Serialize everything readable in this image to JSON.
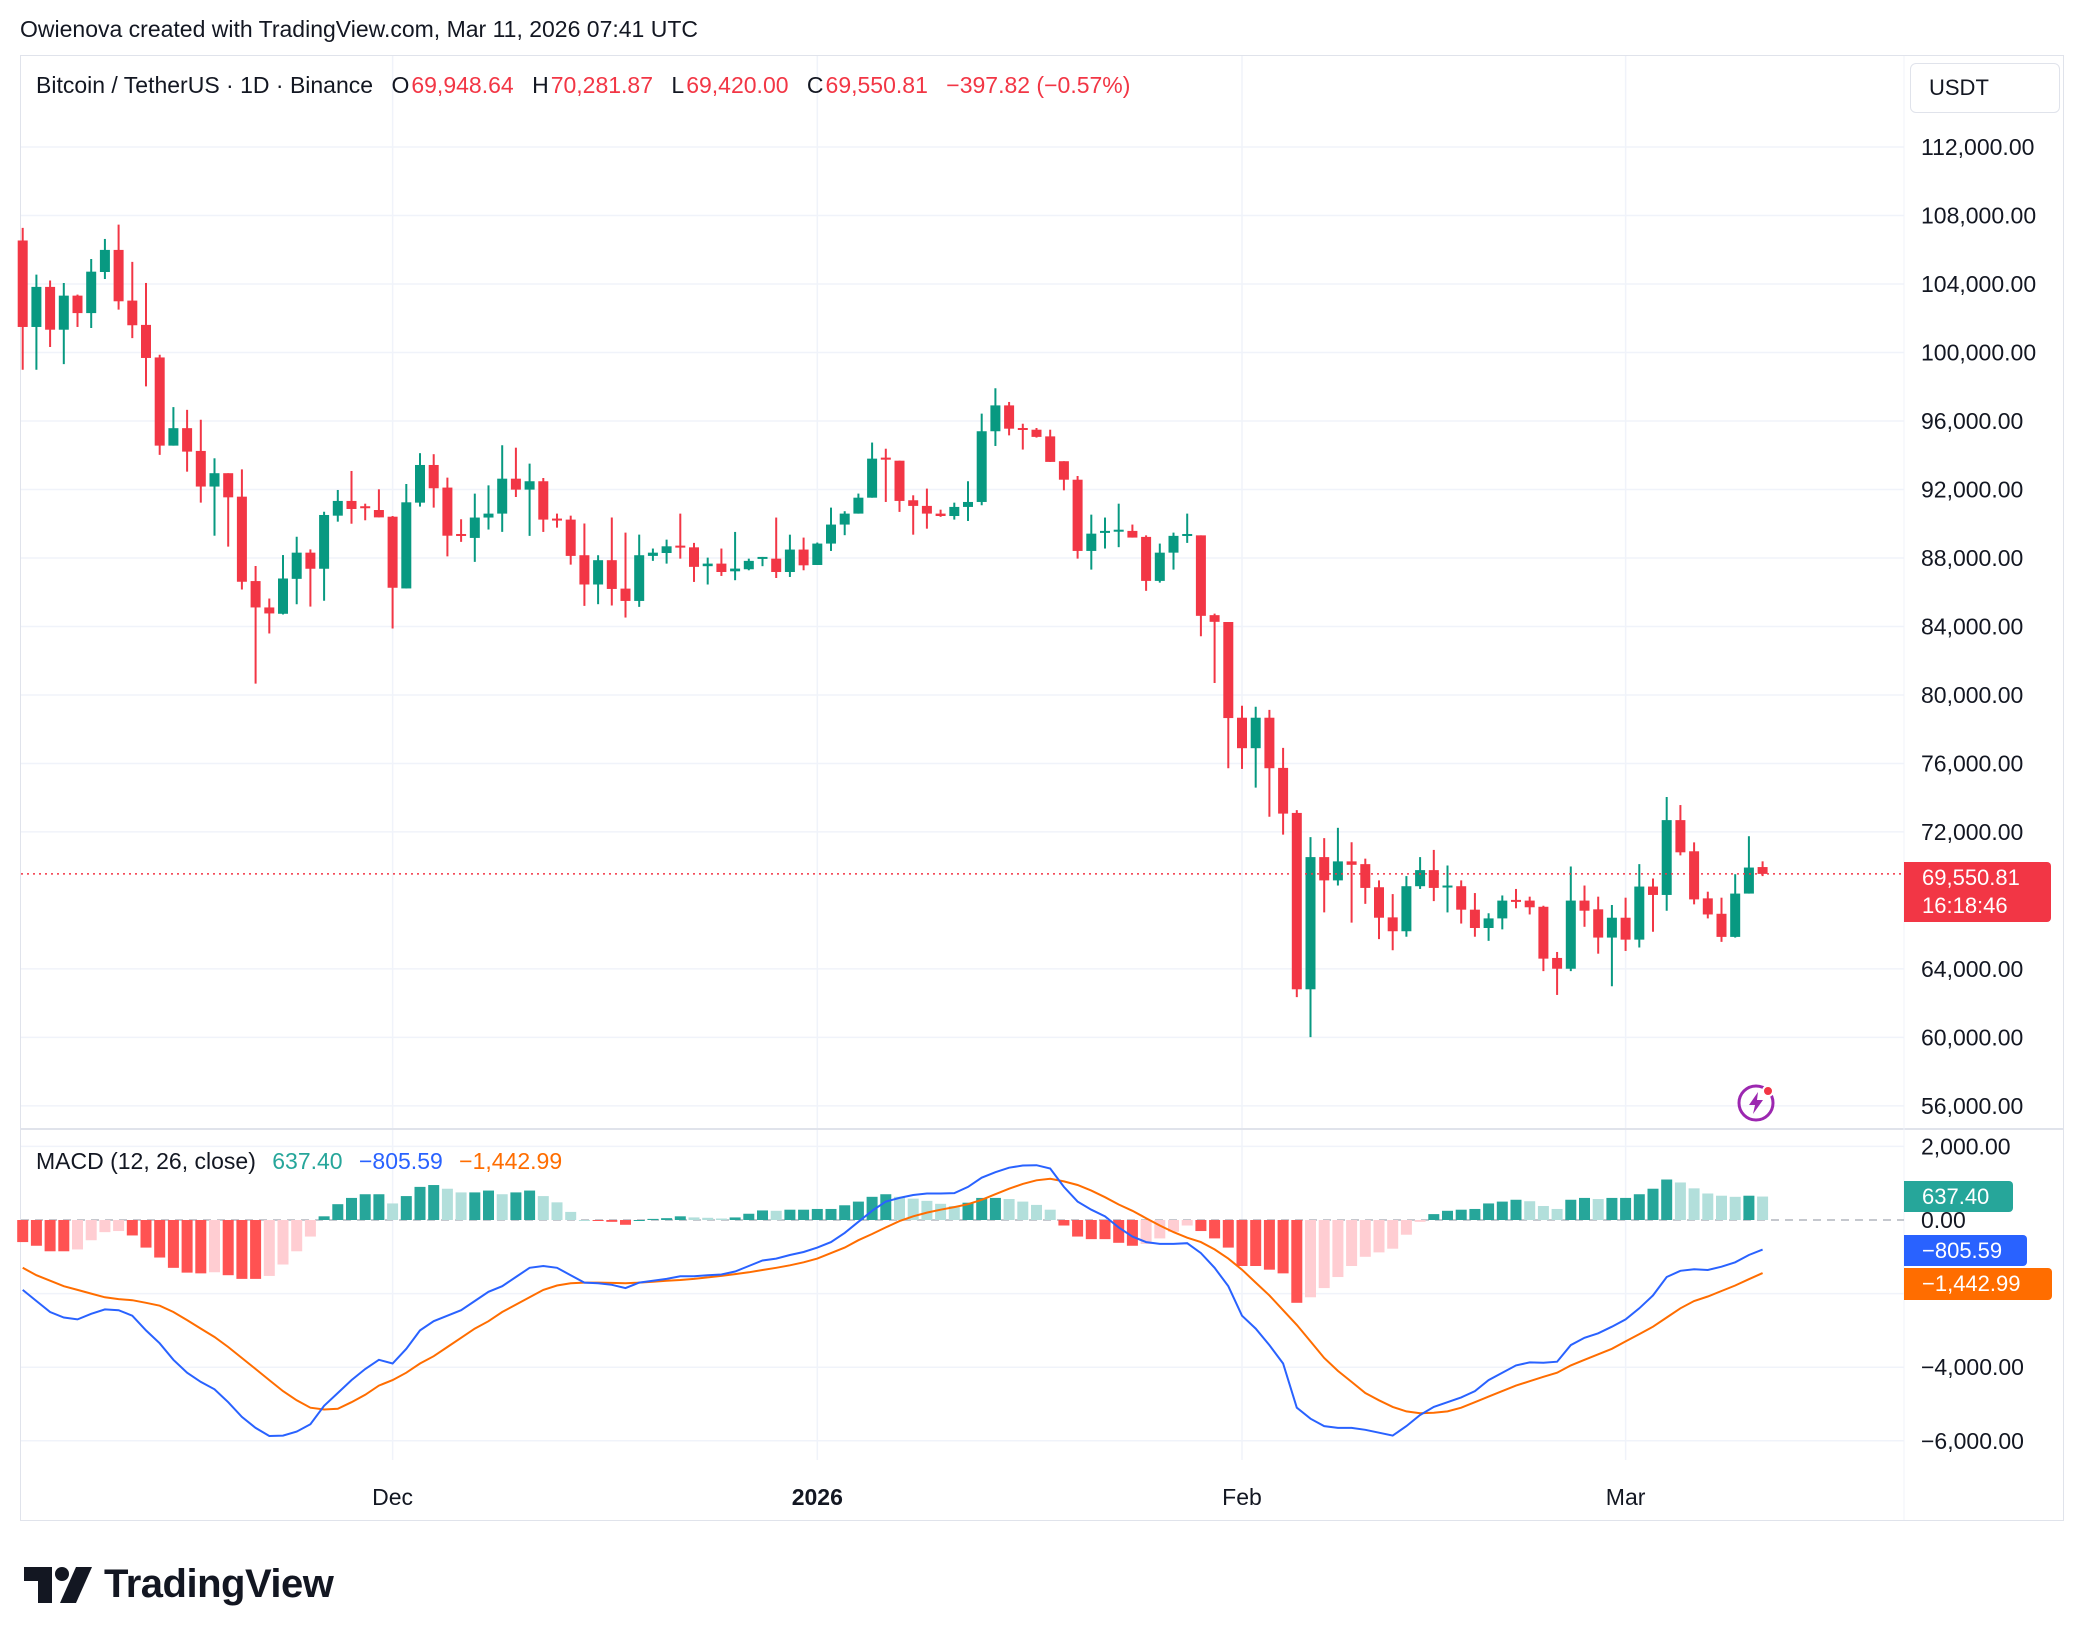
{
  "header": {
    "credit": "Owienova created with TradingView.com, Mar 11, 2026 07:41 UTC"
  },
  "legend": {
    "symbol": "Bitcoin / TetherUS · 1D · Binance",
    "o_label": "O",
    "o": "69,948.64",
    "h_label": "H",
    "h": "70,281.87",
    "l_label": "L",
    "l": "69,420.00",
    "c_label": "C",
    "c": "69,550.81",
    "change": "−397.82 (−0.57%)"
  },
  "currency": "USDT",
  "last_price": {
    "value": "69,550.81",
    "countdown": "16:18:46"
  },
  "macd_legend": {
    "title": "MACD (12, 26, close)",
    "hist": "637.40",
    "macd": "−805.59",
    "signal": "−1,442.99"
  },
  "macd_tags": {
    "hist": "637.40",
    "macd": "−805.59",
    "signal": "−1,442.99"
  },
  "brand": "TradingView",
  "colors": {
    "up": "#089981",
    "down": "#f23645",
    "macd": "#2962ff",
    "signal": "#ff6d00",
    "hist_up_strong": "#26a69a",
    "hist_up_weak": "#b2dfdb",
    "hist_down_strong": "#ff5252",
    "hist_down_weak": "#ffcdd2"
  },
  "chart_data": [
    {
      "type": "candlestick",
      "interval": "1D",
      "ylim": [
        54000,
        114000
      ],
      "yticks": [
        "112,000.00",
        "108,000.00",
        "104,000.00",
        "100,000.00",
        "96,000.00",
        "92,000.00",
        "88,000.00",
        "84,000.00",
        "80,000.00",
        "76,000.00",
        "72,000.00",
        "64,000.00",
        "60,000.00",
        "56,000.00"
      ],
      "ytick_values": [
        112000,
        108000,
        104000,
        100000,
        96000,
        92000,
        88000,
        84000,
        80000,
        76000,
        72000,
        64000,
        60000,
        56000
      ],
      "xticks": [
        {
          "label": "Dec",
          "bold": false
        },
        {
          "label": "2026",
          "bold": true
        },
        {
          "label": "Feb",
          "bold": false
        },
        {
          "label": "Mar",
          "bold": false
        }
      ],
      "grid": true,
      "ohlc": [
        [
          106540,
          107280,
          98990,
          101490
        ],
        [
          101490,
          104550,
          98990,
          103830
        ],
        [
          103830,
          104200,
          100320,
          101330
        ],
        [
          101330,
          104060,
          99320,
          103320
        ],
        [
          103320,
          103380,
          101490,
          102300
        ],
        [
          102300,
          105460,
          101430,
          104720
        ],
        [
          104700,
          106630,
          104290,
          105990
        ],
        [
          105990,
          107470,
          102500,
          102990
        ],
        [
          103030,
          105290,
          100840,
          101590
        ],
        [
          101610,
          104060,
          98020,
          99680
        ],
        [
          99710,
          99870,
          94020,
          94560
        ],
        [
          94560,
          96810,
          94560,
          95580
        ],
        [
          95580,
          96650,
          93040,
          94210
        ],
        [
          94250,
          96070,
          91230,
          92170
        ],
        [
          92170,
          93820,
          89300,
          92950
        ],
        [
          92950,
          92950,
          88660,
          91540
        ],
        [
          91580,
          93170,
          86160,
          86610
        ],
        [
          86650,
          87530,
          80660,
          85110
        ],
        [
          85110,
          85630,
          83590,
          84760
        ],
        [
          84740,
          88170,
          84700,
          86800
        ],
        [
          86780,
          89240,
          85300,
          88310
        ],
        [
          88310,
          88500,
          85160,
          87370
        ],
        [
          87370,
          90700,
          85500,
          90510
        ],
        [
          90470,
          91970,
          90120,
          91330
        ],
        [
          91330,
          93080,
          90000,
          90860
        ],
        [
          91020,
          91170,
          90200,
          90980
        ],
        [
          90800,
          92010,
          90370,
          90370
        ],
        [
          90410,
          90450,
          83880,
          86260
        ],
        [
          86220,
          92320,
          86220,
          91250
        ],
        [
          91230,
          94120,
          91000,
          93430
        ],
        [
          93430,
          94060,
          90940,
          92070
        ],
        [
          92110,
          92690,
          88090,
          89300
        ],
        [
          89400,
          90260,
          88940,
          89320
        ],
        [
          89170,
          91760,
          87770,
          90360
        ],
        [
          90360,
          92240,
          89660,
          90590
        ],
        [
          90590,
          94580,
          89520,
          92630
        ],
        [
          92630,
          94440,
          91560,
          91990
        ],
        [
          91990,
          93510,
          89290,
          92480
        ],
        [
          92480,
          92670,
          89520,
          90240
        ],
        [
          90300,
          90590,
          89770,
          90240
        ],
        [
          90240,
          90470,
          87610,
          88120
        ],
        [
          88160,
          90010,
          85200,
          86450
        ],
        [
          86450,
          88160,
          85300,
          87870
        ],
        [
          87870,
          90360,
          85220,
          86190
        ],
        [
          86210,
          89480,
          84520,
          85490
        ],
        [
          85490,
          89360,
          85140,
          88160
        ],
        [
          88120,
          88550,
          87830,
          88310
        ],
        [
          88290,
          89070,
          87670,
          88680
        ],
        [
          88720,
          90590,
          87960,
          88680
        ],
        [
          88620,
          88880,
          86600,
          87480
        ],
        [
          87520,
          88020,
          86450,
          87670
        ],
        [
          87670,
          88550,
          86950,
          87180
        ],
        [
          87220,
          89520,
          86700,
          87380
        ],
        [
          87340,
          87960,
          87280,
          87830
        ],
        [
          87980,
          88060,
          87520,
          88060
        ],
        [
          87960,
          90360,
          86830,
          87180
        ],
        [
          87180,
          89360,
          86890,
          88490
        ],
        [
          88490,
          89190,
          87280,
          87570
        ],
        [
          87590,
          88900,
          87590,
          88840
        ],
        [
          88840,
          90940,
          88410,
          89950
        ],
        [
          89950,
          90730,
          89330,
          90590
        ],
        [
          90590,
          91760,
          90590,
          91520
        ],
        [
          91520,
          94740,
          91520,
          93800
        ],
        [
          93860,
          94380,
          91270,
          93740
        ],
        [
          93680,
          93680,
          90690,
          91330
        ],
        [
          91370,
          91660,
          89360,
          91040
        ],
        [
          91040,
          92050,
          89710,
          90590
        ],
        [
          90590,
          90820,
          90400,
          90450
        ],
        [
          90450,
          91230,
          90240,
          90980
        ],
        [
          90980,
          92480,
          90160,
          91270
        ],
        [
          91270,
          96430,
          91080,
          95400
        ],
        [
          95400,
          97910,
          94540,
          96910
        ],
        [
          96910,
          97110,
          95160,
          95550
        ],
        [
          95590,
          95840,
          94330,
          95550
        ],
        [
          95490,
          95590,
          95030,
          95070
        ],
        [
          95100,
          95490,
          93610,
          93610
        ],
        [
          93650,
          93650,
          91950,
          92570
        ],
        [
          92570,
          92790,
          87960,
          88410
        ],
        [
          88410,
          90530,
          87320,
          89420
        ],
        [
          89520,
          90360,
          88550,
          89580
        ],
        [
          89600,
          91170,
          88630,
          89650
        ],
        [
          89580,
          89950,
          89190,
          89190
        ],
        [
          89230,
          89320,
          86080,
          86660
        ],
        [
          86660,
          88840,
          86560,
          88310
        ],
        [
          88310,
          89480,
          87320,
          89290
        ],
        [
          89360,
          90590,
          88880,
          89400
        ],
        [
          89320,
          89320,
          83430,
          84620
        ],
        [
          84660,
          84750,
          80700,
          84270
        ],
        [
          84260,
          84260,
          75720,
          78650
        ],
        [
          78670,
          79370,
          75680,
          76890
        ],
        [
          76890,
          79310,
          74590,
          78670
        ],
        [
          78670,
          79130,
          72890,
          75720
        ],
        [
          75740,
          76910,
          71840,
          73070
        ],
        [
          73110,
          73270,
          62350,
          62810
        ],
        [
          62810,
          71700,
          60020,
          70530
        ],
        [
          70530,
          71640,
          67300,
          69170
        ],
        [
          69170,
          72240,
          68870,
          70280
        ],
        [
          70280,
          71400,
          66700,
          70080
        ],
        [
          70120,
          70440,
          67800,
          68730
        ],
        [
          68770,
          69170,
          65740,
          66990
        ],
        [
          67010,
          68370,
          65090,
          66200
        ],
        [
          66200,
          69420,
          65880,
          68830
        ],
        [
          68830,
          70530,
          68670,
          69770
        ],
        [
          69770,
          70950,
          67960,
          68730
        ],
        [
          68830,
          70040,
          67300,
          68870
        ],
        [
          68830,
          69170,
          66650,
          67460
        ],
        [
          67460,
          68430,
          65880,
          66390
        ],
        [
          66390,
          67250,
          65640,
          66950
        ],
        [
          66950,
          68290,
          66310,
          67990
        ],
        [
          68030,
          68670,
          67540,
          67990
        ],
        [
          67990,
          68220,
          67180,
          67600
        ],
        [
          67630,
          67690,
          63870,
          64600
        ],
        [
          64640,
          64990,
          62480,
          64010
        ],
        [
          64010,
          69980,
          63870,
          67990
        ],
        [
          67990,
          68870,
          66460,
          67400
        ],
        [
          67480,
          68220,
          64890,
          65830
        ],
        [
          65830,
          67730,
          62990,
          66990
        ],
        [
          66990,
          68160,
          65050,
          65710
        ],
        [
          65710,
          70120,
          65250,
          68810
        ],
        [
          68810,
          69280,
          66170,
          68320
        ],
        [
          68320,
          74040,
          67400,
          72690
        ],
        [
          72690,
          73570,
          70630,
          70810
        ],
        [
          70870,
          71390,
          67770,
          68060
        ],
        [
          68120,
          68510,
          66950,
          67180
        ],
        [
          67220,
          68160,
          65580,
          65870
        ],
        [
          65870,
          69530,
          65830,
          68400
        ],
        [
          68400,
          71750,
          68400,
          69920
        ],
        [
          69948.64,
          70281.87,
          69420.0,
          69550.81
        ]
      ]
    },
    {
      "type": "line+bar",
      "title": "MACD (12, 26, close)",
      "ylim": [
        -6800,
        2300
      ],
      "yticks": [
        "2,000.00",
        "0.00",
        "−4,000.00",
        "−6,000.00"
      ],
      "ytick_values": [
        2000,
        0,
        -4000,
        -6000
      ],
      "series": [
        {
          "name": "MACD",
          "values": [
            -1900,
            -2200,
            -2500,
            -2650,
            -2700,
            -2550,
            -2430,
            -2450,
            -2600,
            -3000,
            -3350,
            -3800,
            -4150,
            -4400,
            -4600,
            -4950,
            -5350,
            -5650,
            -5870,
            -5860,
            -5750,
            -5550,
            -5050,
            -4700,
            -4350,
            -4050,
            -3800,
            -3900,
            -3500,
            -3000,
            -2750,
            -2600,
            -2450,
            -2200,
            -1950,
            -1800,
            -1550,
            -1300,
            -1250,
            -1300,
            -1500,
            -1700,
            -1720,
            -1760,
            -1850,
            -1700,
            -1650,
            -1600,
            -1530,
            -1530,
            -1500,
            -1480,
            -1400,
            -1250,
            -1100,
            -1050,
            -950,
            -870,
            -750,
            -600,
            -350,
            -50,
            250,
            500,
            600,
            680,
            720,
            720,
            730,
            900,
            1150,
            1300,
            1420,
            1480,
            1490,
            1400,
            900,
            500,
            280,
            100,
            -200,
            -450,
            -600,
            -650,
            -650,
            -630,
            -900,
            -1300,
            -1800,
            -2600,
            -2950,
            -3400,
            -3900,
            -5100,
            -5400,
            -5600,
            -5650,
            -5650,
            -5700,
            -5780,
            -5860,
            -5600,
            -5300,
            -5080,
            -4950,
            -4820,
            -4650,
            -4350,
            -4150,
            -3950,
            -3870,
            -3880,
            -3850,
            -3400,
            -3200,
            -3080,
            -2900,
            -2700,
            -2400,
            -2050,
            -1550,
            -1380,
            -1340,
            -1360,
            -1270,
            -1150,
            -950,
            -805.59
          ]
        },
        {
          "name": "Signal",
          "values": [
            -1300,
            -1500,
            -1650,
            -1800,
            -1900,
            -2000,
            -2100,
            -2150,
            -2180,
            -2250,
            -2330,
            -2500,
            -2720,
            -2950,
            -3180,
            -3450,
            -3750,
            -4050,
            -4350,
            -4650,
            -4900,
            -5100,
            -5150,
            -5130,
            -4950,
            -4750,
            -4500,
            -4350,
            -4150,
            -3900,
            -3700,
            -3450,
            -3200,
            -2950,
            -2750,
            -2500,
            -2300,
            -2100,
            -1900,
            -1780,
            -1720,
            -1700,
            -1700,
            -1710,
            -1720,
            -1700,
            -1680,
            -1650,
            -1630,
            -1600,
            -1560,
            -1520,
            -1470,
            -1420,
            -1360,
            -1300,
            -1230,
            -1150,
            -1050,
            -900,
            -750,
            -550,
            -380,
            -200,
            -30,
            100,
            200,
            280,
            350,
            430,
            550,
            700,
            850,
            980,
            1080,
            1120,
            1050,
            950,
            800,
            620,
            420,
            250,
            50,
            -150,
            -330,
            -480,
            -600,
            -800,
            -1050,
            -1350,
            -1700,
            -2050,
            -2450,
            -2850,
            -3300,
            -3750,
            -4100,
            -4400,
            -4700,
            -4900,
            -5080,
            -5200,
            -5250,
            -5240,
            -5200,
            -5100,
            -4950,
            -4800,
            -4650,
            -4500,
            -4380,
            -4260,
            -4150,
            -3950,
            -3800,
            -3650,
            -3500,
            -3300,
            -3100,
            -2900,
            -2650,
            -2400,
            -2200,
            -2080,
            -1930,
            -1780,
            -1610,
            -1442.99
          ]
        }
      ]
    }
  ]
}
